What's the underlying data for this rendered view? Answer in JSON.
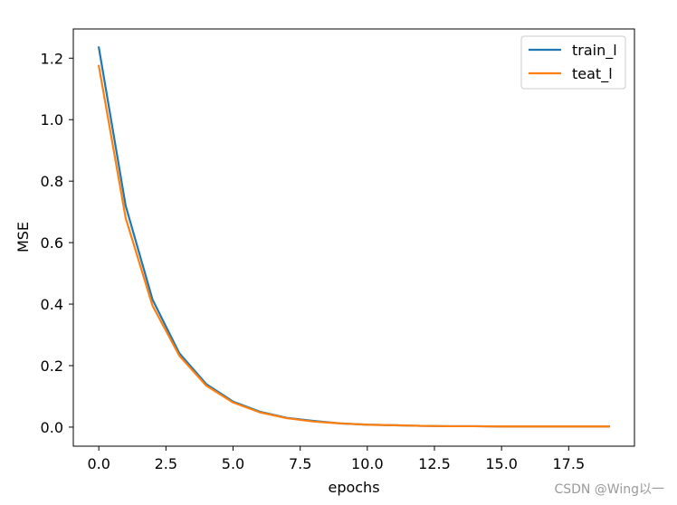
{
  "chart_data": {
    "type": "line",
    "xlabel": "epochs",
    "ylabel": "MSE",
    "xlim": [
      -0.95,
      19.95
    ],
    "ylim": [
      -0.062,
      1.295
    ],
    "xticks": [
      0.0,
      2.5,
      5.0,
      7.5,
      10.0,
      12.5,
      15.0,
      17.5
    ],
    "xtick_labels": [
      "0.0",
      "2.5",
      "5.0",
      "7.5",
      "10.0",
      "12.5",
      "15.0",
      "17.5"
    ],
    "yticks": [
      0.0,
      0.2,
      0.4,
      0.6,
      0.8,
      1.0,
      1.2
    ],
    "ytick_labels": [
      "0.0",
      "0.2",
      "0.4",
      "0.6",
      "0.8",
      "1.0",
      "1.2"
    ],
    "grid": false,
    "legend_position": "top-right",
    "x": [
      0,
      1,
      2,
      3,
      4,
      5,
      6,
      7,
      8,
      9,
      10,
      11,
      12,
      13,
      14,
      15,
      16,
      17,
      18,
      19
    ],
    "series": [
      {
        "name": "train_l",
        "color": "#1f77b4",
        "values": [
          1.235,
          0.72,
          0.415,
          0.24,
          0.14,
          0.083,
          0.05,
          0.03,
          0.02,
          0.012,
          0.008,
          0.006,
          0.004,
          0.003,
          0.003,
          0.002,
          0.002,
          0.002,
          0.002,
          0.002
        ]
      },
      {
        "name": "teat_l",
        "color": "#ff7f0e",
        "values": [
          1.175,
          0.68,
          0.395,
          0.232,
          0.135,
          0.08,
          0.048,
          0.029,
          0.018,
          0.012,
          0.008,
          0.006,
          0.004,
          0.003,
          0.003,
          0.002,
          0.002,
          0.002,
          0.002,
          0.002
        ]
      }
    ]
  },
  "watermark": "CSDN @Wing以一"
}
